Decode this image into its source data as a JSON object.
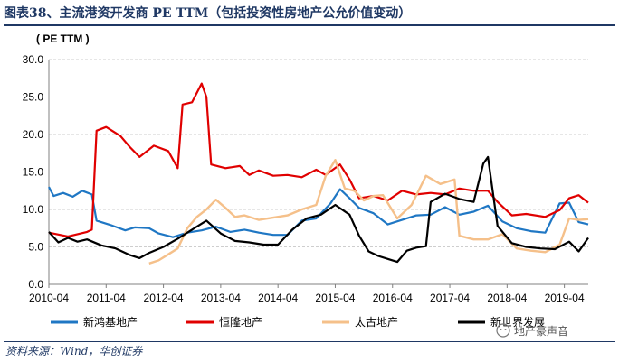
{
  "title": "图表38、主流港资开发商 PE TTM（包括投资性房地产公允价值变动）",
  "source": "资料来源：Wind，华创证券",
  "watermark": "地产豪声音",
  "chart_data": {
    "type": "line",
    "ylabel": "( PE TTM )",
    "ylim": [
      0,
      30
    ],
    "yticks": [
      "0.0",
      "5.0",
      "10.0",
      "15.0",
      "20.0",
      "25.0",
      "30.0"
    ],
    "xlim": [
      "2010-04",
      "2019-09"
    ],
    "xticks": [
      "2010-04",
      "2011-04",
      "2012-04",
      "2013-04",
      "2014-04",
      "2015-04",
      "2016-04",
      "2017-04",
      "2018-04",
      "2019-04"
    ],
    "grid": "horizontal-dashed",
    "legend_position": "bottom",
    "series": [
      {
        "name": "新鸿基地产",
        "color": "#1f77c4",
        "points": [
          [
            "2010-04",
            13.0
          ],
          [
            "2010-05",
            11.8
          ],
          [
            "2010-07",
            12.2
          ],
          [
            "2010-09",
            11.7
          ],
          [
            "2010-11",
            12.5
          ],
          [
            "2011-01",
            12.0
          ],
          [
            "2011-02",
            8.5
          ],
          [
            "2011-05",
            7.9
          ],
          [
            "2011-08",
            7.2
          ],
          [
            "2011-10",
            7.6
          ],
          [
            "2012-01",
            7.5
          ],
          [
            "2012-03",
            6.8
          ],
          [
            "2012-06",
            6.3
          ],
          [
            "2012-09",
            6.9
          ],
          [
            "2012-12",
            7.2
          ],
          [
            "2013-03",
            7.7
          ],
          [
            "2013-06",
            7.0
          ],
          [
            "2013-09",
            7.3
          ],
          [
            "2013-12",
            6.9
          ],
          [
            "2014-03",
            6.6
          ],
          [
            "2014-06",
            6.6
          ],
          [
            "2014-09",
            8.5
          ],
          [
            "2014-12",
            8.8
          ],
          [
            "2015-03",
            10.8
          ],
          [
            "2015-05",
            12.7
          ],
          [
            "2015-07",
            11.5
          ],
          [
            "2015-09",
            10.2
          ],
          [
            "2015-12",
            9.5
          ],
          [
            "2016-03",
            8.0
          ],
          [
            "2016-06",
            8.6
          ],
          [
            "2016-09",
            9.2
          ],
          [
            "2016-12",
            9.3
          ],
          [
            "2017-03",
            10.3
          ],
          [
            "2017-06",
            9.3
          ],
          [
            "2017-09",
            9.7
          ],
          [
            "2017-12",
            10.5
          ],
          [
            "2018-03",
            8.4
          ],
          [
            "2018-06",
            7.5
          ],
          [
            "2018-09",
            7.1
          ],
          [
            "2018-12",
            6.9
          ],
          [
            "2019-03",
            10.8
          ],
          [
            "2019-05",
            10.9
          ],
          [
            "2019-07",
            8.3
          ],
          [
            "2019-09",
            8.0
          ]
        ]
      },
      {
        "name": "恒隆地产",
        "color": "#e00000",
        "points": [
          [
            "2010-04",
            6.9
          ],
          [
            "2010-08",
            6.4
          ],
          [
            "2010-12",
            7.0
          ],
          [
            "2011-01",
            7.3
          ],
          [
            "2011-02",
            20.5
          ],
          [
            "2011-04",
            21.0
          ],
          [
            "2011-07",
            19.8
          ],
          [
            "2011-09",
            18.3
          ],
          [
            "2011-11",
            17.0
          ],
          [
            "2012-02",
            18.5
          ],
          [
            "2012-05",
            17.8
          ],
          [
            "2012-07",
            15.5
          ],
          [
            "2012-08",
            24.0
          ],
          [
            "2012-10",
            24.3
          ],
          [
            "2012-12",
            26.8
          ],
          [
            "2013-01",
            25.0
          ],
          [
            "2013-02",
            16.0
          ],
          [
            "2013-05",
            15.5
          ],
          [
            "2013-08",
            15.8
          ],
          [
            "2013-10",
            14.6
          ],
          [
            "2013-12",
            15.2
          ],
          [
            "2014-03",
            14.5
          ],
          [
            "2014-06",
            14.6
          ],
          [
            "2014-09",
            14.3
          ],
          [
            "2014-12",
            15.3
          ],
          [
            "2015-02",
            14.6
          ],
          [
            "2015-05",
            16.0
          ],
          [
            "2015-07",
            14.0
          ],
          [
            "2015-09",
            11.5
          ],
          [
            "2015-12",
            11.8
          ],
          [
            "2016-03",
            11.2
          ],
          [
            "2016-06",
            12.5
          ],
          [
            "2016-09",
            12.0
          ],
          [
            "2016-12",
            12.2
          ],
          [
            "2017-03",
            12.0
          ],
          [
            "2017-06",
            12.8
          ],
          [
            "2017-09",
            12.5
          ],
          [
            "2017-12",
            12.5
          ],
          [
            "2018-02",
            11.0
          ],
          [
            "2018-05",
            9.2
          ],
          [
            "2018-08",
            9.4
          ],
          [
            "2018-12",
            9.0
          ],
          [
            "2019-03",
            9.9
          ],
          [
            "2019-05",
            11.5
          ],
          [
            "2019-07",
            11.9
          ],
          [
            "2019-09",
            10.9
          ]
        ]
      },
      {
        "name": "太古地产",
        "color": "#f5c08a",
        "points": [
          [
            "2012-01",
            2.8
          ],
          [
            "2012-03",
            3.2
          ],
          [
            "2012-05",
            4.0
          ],
          [
            "2012-07",
            4.8
          ],
          [
            "2012-09",
            7.5
          ],
          [
            "2012-11",
            9.0
          ],
          [
            "2013-01",
            10.0
          ],
          [
            "2013-03",
            11.3
          ],
          [
            "2013-05",
            10.2
          ],
          [
            "2013-07",
            9.0
          ],
          [
            "2013-09",
            9.2
          ],
          [
            "2013-12",
            8.6
          ],
          [
            "2014-03",
            8.9
          ],
          [
            "2014-06",
            9.2
          ],
          [
            "2014-09",
            10.0
          ],
          [
            "2014-12",
            10.6
          ],
          [
            "2015-02",
            14.5
          ],
          [
            "2015-04",
            16.6
          ],
          [
            "2015-06",
            12.8
          ],
          [
            "2015-08",
            12.5
          ],
          [
            "2015-10",
            11.2
          ],
          [
            "2015-12",
            11.8
          ],
          [
            "2016-02",
            11.9
          ],
          [
            "2016-05",
            8.8
          ],
          [
            "2016-08",
            10.6
          ],
          [
            "2016-11",
            14.5
          ],
          [
            "2017-02",
            13.4
          ],
          [
            "2017-05",
            14.0
          ],
          [
            "2017-06",
            6.5
          ],
          [
            "2017-09",
            6.0
          ],
          [
            "2017-12",
            6.0
          ],
          [
            "2018-03",
            6.7
          ],
          [
            "2018-06",
            4.8
          ],
          [
            "2018-09",
            4.5
          ],
          [
            "2018-12",
            4.3
          ],
          [
            "2019-03",
            5.3
          ],
          [
            "2019-05",
            8.8
          ],
          [
            "2019-07",
            8.6
          ],
          [
            "2019-09",
            8.7
          ]
        ]
      },
      {
        "name": "新世界发展",
        "color": "#000000",
        "points": [
          [
            "2010-04",
            7.0
          ],
          [
            "2010-06",
            5.6
          ],
          [
            "2010-08",
            6.2
          ],
          [
            "2010-10",
            5.7
          ],
          [
            "2010-12",
            6.0
          ],
          [
            "2011-03",
            5.2
          ],
          [
            "2011-06",
            4.8
          ],
          [
            "2011-09",
            3.9
          ],
          [
            "2011-11",
            3.5
          ],
          [
            "2012-01",
            4.2
          ],
          [
            "2012-04",
            5.0
          ],
          [
            "2012-07",
            6.1
          ],
          [
            "2012-10",
            7.3
          ],
          [
            "2013-01",
            8.5
          ],
          [
            "2013-04",
            6.8
          ],
          [
            "2013-07",
            5.8
          ],
          [
            "2013-10",
            5.6
          ],
          [
            "2014-01",
            5.3
          ],
          [
            "2014-04",
            5.3
          ],
          [
            "2014-07",
            7.3
          ],
          [
            "2014-10",
            8.8
          ],
          [
            "2015-01",
            9.3
          ],
          [
            "2015-04",
            10.6
          ],
          [
            "2015-07",
            9.3
          ],
          [
            "2015-09",
            6.5
          ],
          [
            "2015-11",
            4.4
          ],
          [
            "2016-01",
            3.8
          ],
          [
            "2016-03",
            3.4
          ],
          [
            "2016-05",
            3.0
          ],
          [
            "2016-07",
            4.5
          ],
          [
            "2016-09",
            4.9
          ],
          [
            "2016-11",
            5.1
          ],
          [
            "2016-12",
            11.0
          ],
          [
            "2017-03",
            12.1
          ],
          [
            "2017-06",
            11.4
          ],
          [
            "2017-09",
            11.0
          ],
          [
            "2017-11",
            16.1
          ],
          [
            "2017-12",
            17.0
          ],
          [
            "2018-02",
            7.8
          ],
          [
            "2018-05",
            5.5
          ],
          [
            "2018-08",
            5.0
          ],
          [
            "2018-11",
            4.8
          ],
          [
            "2019-02",
            4.7
          ],
          [
            "2019-05",
            5.7
          ],
          [
            "2019-07",
            4.4
          ],
          [
            "2019-09",
            6.2
          ]
        ]
      }
    ]
  }
}
